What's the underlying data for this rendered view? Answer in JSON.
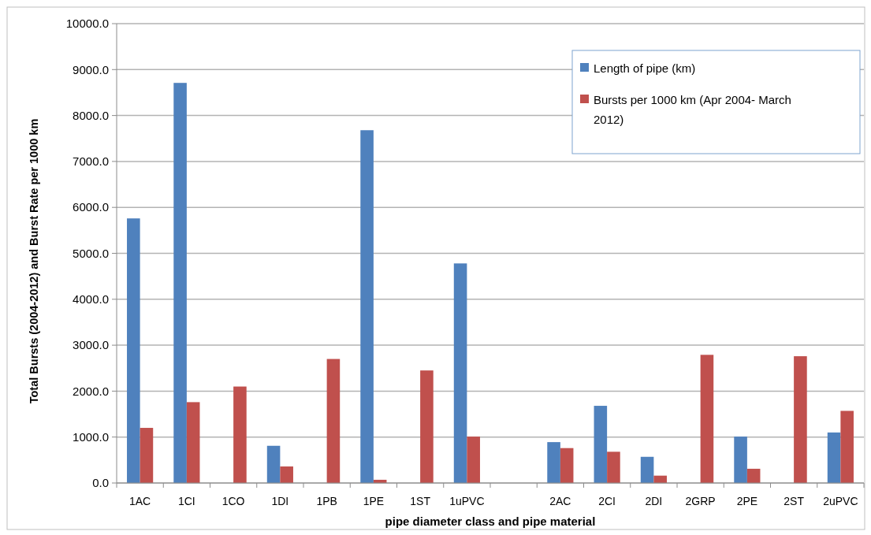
{
  "chart_data": {
    "type": "bar",
    "xlabel": "pipe diameter class and pipe material",
    "ylabel": "Total Bursts (2004-2012) and Burst Rate per 1000 km",
    "categories": [
      "1AC",
      "1CI",
      "1CO",
      "1DI",
      "1PB",
      "1PE",
      "1ST",
      "1uPVC",
      null,
      "2AC",
      "2CI",
      "2DI",
      "2GRP",
      "2PE",
      "2ST",
      "2uPVC"
    ],
    "series": [
      {
        "name": "Length of pipe (km)",
        "color": "#4f81bd",
        "values": [
          5760,
          8710,
          null,
          810,
          null,
          7680,
          null,
          4780,
          null,
          890,
          1680,
          570,
          null,
          1010,
          null,
          1100
        ]
      },
      {
        "name": "Bursts per 1000 km (Apr 2004- March 2012)",
        "color": "#c0504d",
        "values": [
          1200,
          1760,
          2100,
          360,
          2700,
          70,
          2450,
          1010,
          null,
          760,
          680,
          160,
          2790,
          310,
          2760,
          1570
        ]
      }
    ],
    "ylim": [
      0,
      10000
    ],
    "yticks": [
      {
        "value": 0,
        "label": "0.0"
      },
      {
        "value": 1000,
        "label": "1000.0"
      },
      {
        "value": 2000,
        "label": "2000.0"
      },
      {
        "value": 3000,
        "label": "3000.0"
      },
      {
        "value": 4000,
        "label": "4000.0"
      },
      {
        "value": 5000,
        "label": "5000.0"
      },
      {
        "value": 6000,
        "label": "6000.0"
      },
      {
        "value": 7000,
        "label": "7000.0"
      },
      {
        "value": 8000,
        "label": "8000.0"
      },
      {
        "value": 9000,
        "label": "9000.0"
      },
      {
        "value": 10000,
        "label": "10000.0"
      }
    ],
    "grid": "y",
    "legend": "top right"
  }
}
